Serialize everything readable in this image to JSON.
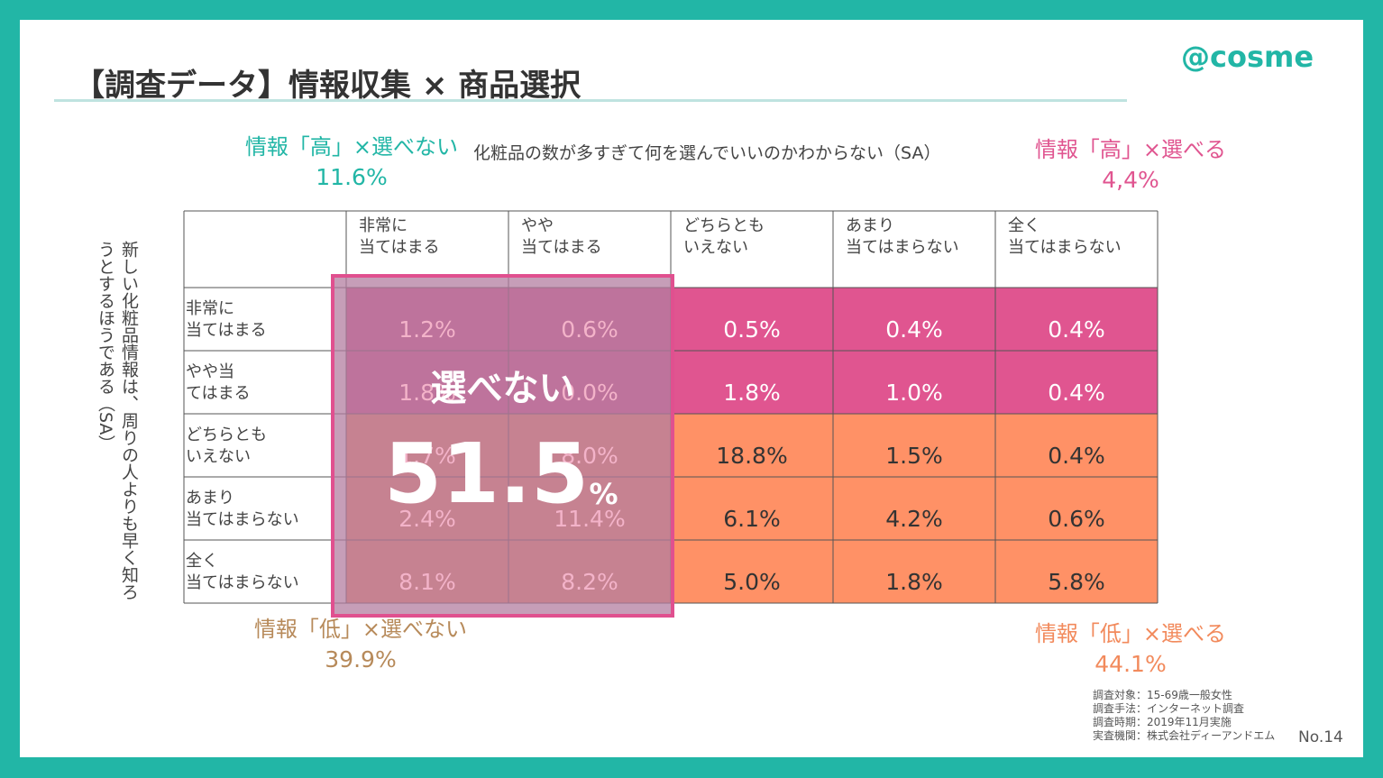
{
  "title": "【調査データ】情報収集 × 商品選択",
  "logo": "@cosme",
  "quadrants": {
    "high_cant": {
      "label": "情報「高」×選べない",
      "value": "11.6%"
    },
    "high_can": {
      "label": "情報「高」×選べる",
      "value": "4,4%"
    },
    "low_cant": {
      "label": "情報「低」×選べない",
      "value": "39.9%"
    },
    "low_can": {
      "label": "情報「低」×選べる",
      "value": "44.1%"
    }
  },
  "col_question": "化粧品の数が多すぎて何を選んでいいのかわからない（SA）",
  "row_question": "新しい化粧品情報は、周りの人よりも早く知ろうとするほうである（SA）",
  "highlight": {
    "label": "選べない",
    "value": "51.5",
    "unit": "%"
  },
  "colors": {
    "teal": "#22b6a6",
    "pink": "#e05590",
    "orange": "#ff9166",
    "highlight_border": "#e0508f",
    "highlight_fill": "#b37ea0"
  },
  "chart_data": {
    "type": "table",
    "columns": [
      [
        "非常に",
        "当てはまる"
      ],
      [
        "やや",
        "当てはまる"
      ],
      [
        "どちらとも",
        "いえない"
      ],
      [
        "あまり",
        "当てはまらない"
      ],
      [
        "全く",
        "当てはまらない"
      ]
    ],
    "rows": [
      {
        "label": [
          "非常に",
          "当てはまる"
        ],
        "values": [
          "1.2%",
          "0.6%",
          "0.5%",
          "0.4%",
          "0.4%"
        ]
      },
      {
        "label": [
          "やや当",
          "てはまる"
        ],
        "values": [
          "1.8%",
          "0.0%",
          "1.8%",
          "1.0%",
          "0.4%"
        ]
      },
      {
        "label": [
          "どちらとも",
          "いえない"
        ],
        "values": [
          "1.7%",
          "8.0%",
          "18.8%",
          "1.5%",
          "0.4%"
        ]
      },
      {
        "label": [
          "あまり",
          "当てはまらない"
        ],
        "values": [
          "2.4%",
          "11.4%",
          "6.1%",
          "4.2%",
          "0.6%"
        ]
      },
      {
        "label": [
          "全く",
          "当てはまらない"
        ],
        "values": [
          "8.1%",
          "8.2%",
          "5.0%",
          "1.8%",
          "5.8%"
        ]
      }
    ]
  },
  "note": [
    "調査対象：15-69歳一般女性",
    "調査手法：インターネット調査",
    "調査時期：2019年11月実施",
    "実査機関：株式会社ディーアンドエム"
  ],
  "page_number": "No.14"
}
